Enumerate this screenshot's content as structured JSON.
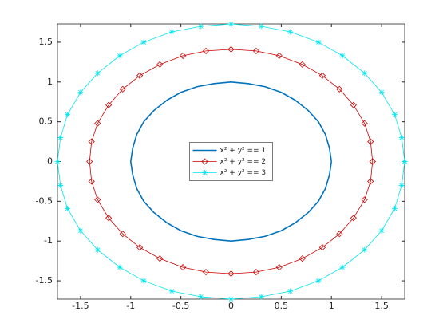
{
  "chart_data": {
    "type": "line",
    "xlim": [
      -1.73,
      1.73
    ],
    "ylim": [
      -1.73,
      1.73
    ],
    "xticks": [
      -1.5,
      -1,
      -0.5,
      0,
      0.5,
      1,
      1.5
    ],
    "yticks": [
      -1.5,
      -1,
      -0.5,
      0,
      0.5,
      1,
      1.5
    ],
    "legend": "center",
    "series": [
      {
        "name": "x² + y² == 1",
        "color": "#0072bd",
        "marker": "none",
        "x": [
          1,
          0.98,
          0.94,
          0.87,
          0.77,
          0.64,
          0.5,
          0.34,
          0.17,
          0,
          -0.17,
          -0.34,
          -0.5,
          -0.64,
          -0.77,
          -0.87,
          -0.94,
          -0.98,
          -1,
          -0.98,
          -0.94,
          -0.87,
          -0.77,
          -0.64,
          -0.5,
          -0.34,
          -0.17,
          0,
          0.17,
          0.34,
          0.5,
          0.64,
          0.77,
          0.87,
          0.94,
          0.98,
          1
        ],
        "values": [
          0,
          0.17,
          0.34,
          0.5,
          0.64,
          0.77,
          0.87,
          0.94,
          0.98,
          1,
          0.98,
          0.94,
          0.87,
          0.77,
          0.64,
          0.5,
          0.34,
          0.17,
          0,
          -0.17,
          -0.34,
          -0.5,
          -0.64,
          -0.77,
          -0.87,
          -0.94,
          -0.98,
          -1,
          -0.98,
          -0.94,
          -0.87,
          -0.77,
          -0.64,
          -0.5,
          -0.34,
          -0.17,
          0
        ]
      },
      {
        "name": "x² + y² == 2",
        "color": "#cc0000",
        "marker": "diamond",
        "x": [
          1.41,
          1.39,
          1.33,
          1.22,
          1.08,
          0.91,
          0.71,
          0.48,
          0.25,
          0,
          -0.25,
          -0.48,
          -0.71,
          -0.91,
          -1.08,
          -1.22,
          -1.33,
          -1.39,
          -1.41,
          -1.39,
          -1.33,
          -1.22,
          -1.08,
          -0.91,
          -0.71,
          -0.48,
          -0.25,
          0,
          0.25,
          0.48,
          0.71,
          0.91,
          1.08,
          1.22,
          1.33,
          1.39,
          1.41
        ],
        "values": [
          0,
          0.25,
          0.48,
          0.71,
          0.91,
          1.08,
          1.22,
          1.33,
          1.39,
          1.41,
          1.39,
          1.33,
          1.22,
          1.08,
          0.91,
          0.71,
          0.48,
          0.25,
          0,
          -0.25,
          -0.48,
          -0.71,
          -0.91,
          -1.08,
          -1.22,
          -1.33,
          -1.39,
          -1.41,
          -1.39,
          -1.33,
          -1.22,
          -1.08,
          -0.91,
          -0.71,
          -0.48,
          -0.25,
          0
        ]
      },
      {
        "name": "x² + y² == 3",
        "color": "#00e5ee",
        "marker": "asterisk",
        "x": [
          1.73,
          1.7,
          1.63,
          1.5,
          1.33,
          1.11,
          0.87,
          0.59,
          0.3,
          0,
          -0.3,
          -0.59,
          -0.87,
          -1.11,
          -1.33,
          -1.5,
          -1.63,
          -1.7,
          -1.73,
          -1.7,
          -1.63,
          -1.5,
          -1.33,
          -1.11,
          -0.87,
          -0.59,
          -0.3,
          0,
          0.3,
          0.59,
          0.87,
          1.11,
          1.33,
          1.5,
          1.63,
          1.7,
          1.73
        ],
        "values": [
          0,
          0.3,
          0.59,
          0.87,
          1.11,
          1.33,
          1.5,
          1.63,
          1.7,
          1.73,
          1.7,
          1.63,
          1.5,
          1.33,
          1.11,
          0.87,
          0.59,
          0.3,
          0,
          -0.3,
          -0.59,
          -0.87,
          -1.11,
          -1.33,
          -1.5,
          -1.63,
          -1.7,
          -1.73,
          -1.7,
          -1.63,
          -1.5,
          -1.33,
          -1.11,
          -0.87,
          -0.59,
          -0.3,
          0
        ]
      }
    ]
  }
}
